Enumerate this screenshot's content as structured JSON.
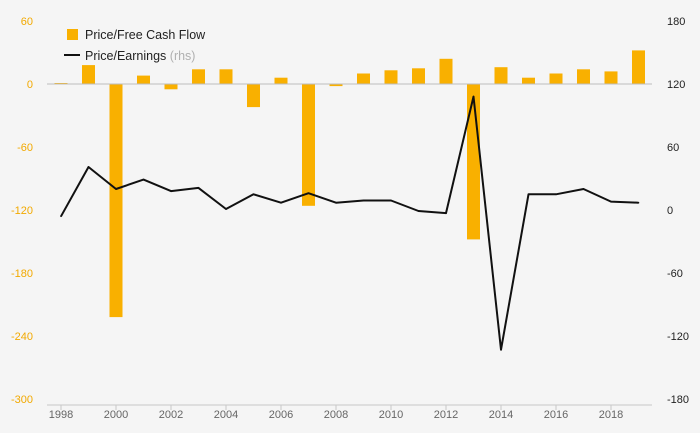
{
  "chart_data": {
    "type": "bar+line",
    "title": "",
    "x": [
      1998,
      1999,
      2000,
      2001,
      2002,
      2003,
      2004,
      2005,
      2006,
      2007,
      2008,
      2009,
      2010,
      2011,
      2012,
      2013,
      2014,
      2015,
      2016,
      2017,
      2018,
      2019
    ],
    "x_tick_labels": [
      "1998",
      "2000",
      "2002",
      "2004",
      "2006",
      "2008",
      "2010",
      "2012",
      "2014",
      "2016",
      "2018"
    ],
    "x_tick_values": [
      1998,
      2000,
      2002,
      2004,
      2006,
      2008,
      2010,
      2012,
      2014,
      2016,
      2018
    ],
    "y_left": {
      "ylim": [
        -300,
        60
      ],
      "ticks": [
        60,
        0,
        -60,
        -120,
        -180,
        -240,
        -300
      ],
      "color": "#f2a900"
    },
    "y_right": {
      "ylim": [
        -180,
        180
      ],
      "ticks": [
        180,
        120,
        60,
        0,
        -60,
        -120,
        -180
      ],
      "color": "#222222"
    },
    "legend_position": "top-left",
    "grid": false,
    "series": [
      {
        "name": "Price/Free Cash Flow",
        "type": "bar",
        "axis": "left",
        "color": "#f9b000",
        "values": [
          1,
          18,
          -222,
          8,
          -5,
          14,
          14,
          -22,
          6,
          -116,
          -2,
          10,
          13,
          15,
          24,
          -148,
          16,
          6,
          10,
          14,
          12,
          32
        ]
      },
      {
        "name": "Price/Earnings",
        "name_suffix": "(rhs)",
        "type": "line",
        "axis": "right",
        "color": "#111111",
        "values": [
          -6,
          41,
          20,
          29,
          18,
          21,
          1,
          15,
          7,
          16,
          7,
          9,
          9,
          -1,
          -3,
          108,
          -133,
          15,
          15,
          20,
          8,
          7
        ]
      }
    ]
  }
}
